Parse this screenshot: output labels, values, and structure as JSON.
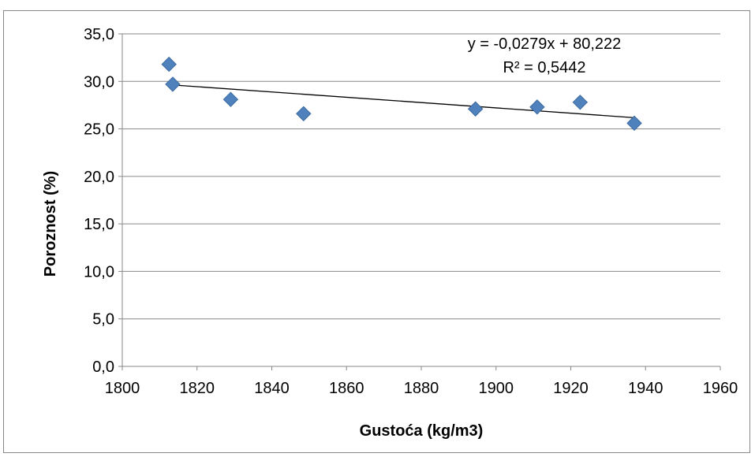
{
  "chart_data": {
    "type": "scatter",
    "xlabel": "Gustoća (kg/m3)",
    "ylabel": "Poroznost (%)",
    "xlim": [
      1800,
      1960
    ],
    "ylim": [
      0,
      35
    ],
    "x_ticks": [
      "1800",
      "1820",
      "1840",
      "1860",
      "1880",
      "1900",
      "1920",
      "1940",
      "1960"
    ],
    "y_ticks": [
      "0,0",
      "5,0",
      "10,0",
      "15,0",
      "20,0",
      "25,0",
      "30,0",
      "35,0"
    ],
    "grid": "horizontal",
    "legend": "none",
    "series": [
      {
        "x": [
          1812.5,
          1813.5,
          1829,
          1848.5,
          1894.5,
          1911,
          1922.5,
          1937
        ],
        "y": [
          31.8,
          29.7,
          28.1,
          26.6,
          27.1,
          27.3,
          27.8,
          25.6
        ],
        "marker": "diamond",
        "color": "#4F81BD"
      }
    ],
    "trendline": {
      "type": "linear",
      "slope": -0.0279,
      "intercept": 80.222,
      "x_range": [
        1812.5,
        1937
      ],
      "equation": "y = -0,0279x + 80,222",
      "r_squared": "R² = 0,5442",
      "color": "#000000"
    }
  }
}
